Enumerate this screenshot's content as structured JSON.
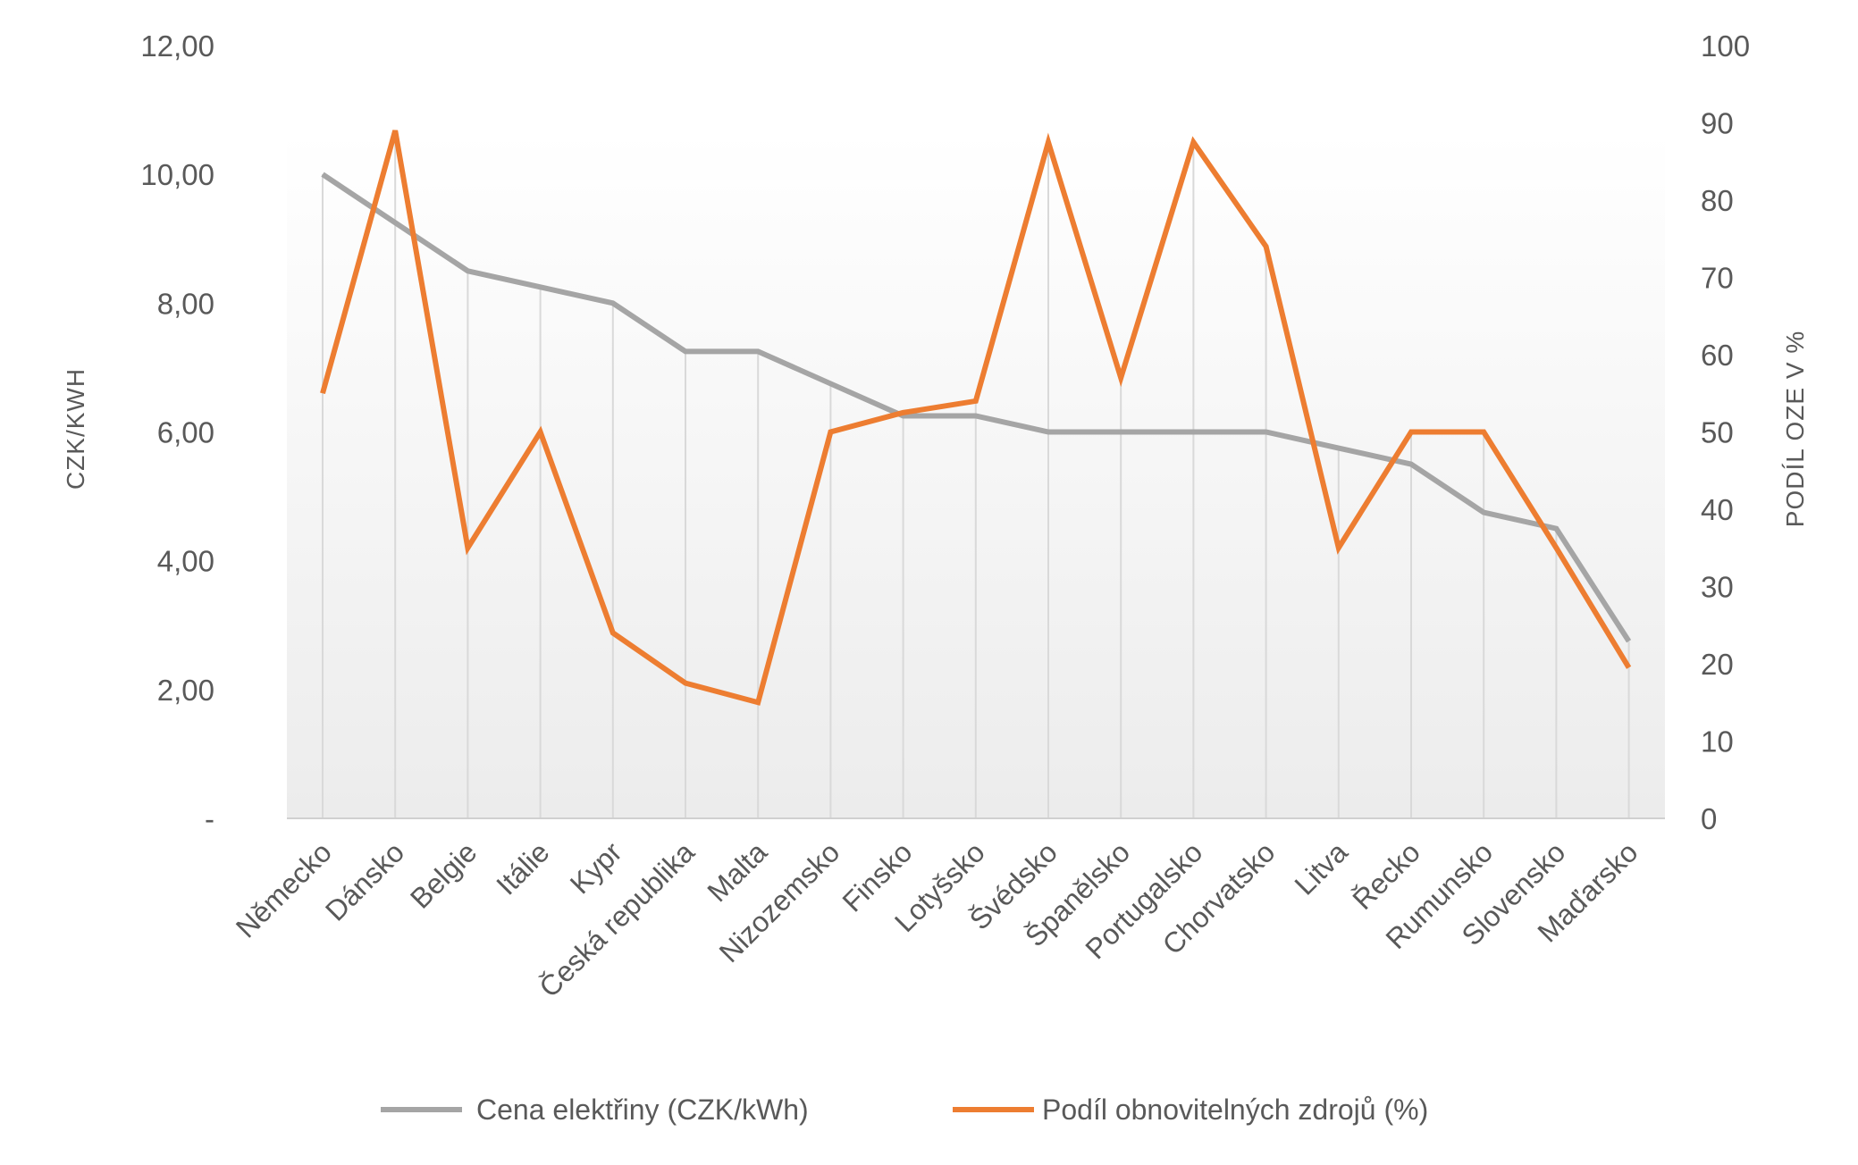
{
  "chart_data": {
    "type": "line",
    "title": "",
    "categories": [
      "Německo",
      "Dánsko",
      "Belgie",
      "Itálie",
      "Kypr",
      "Česká republika",
      "Malta",
      "Nizozemsko",
      "Finsko",
      "Lotyšsko",
      "Švédsko",
      "Španělsko",
      "Portugalsko",
      "Chorvatsko",
      "Litva",
      "Řecko",
      "Rumunsko",
      "Slovensko",
      "Maďarsko"
    ],
    "series": [
      {
        "name": "Cena elektřiny (CZK/kWh)",
        "axis": "left",
        "color": "#A5A5A5",
        "values": [
          10.0,
          9.25,
          8.5,
          8.25,
          8.0,
          7.25,
          7.25,
          6.75,
          6.25,
          6.25,
          6.0,
          6.0,
          6.0,
          6.0,
          5.75,
          5.5,
          4.75,
          4.5,
          2.75
        ]
      },
      {
        "name": "Podíl obnovitelných zdrojů (%)",
        "axis": "right",
        "color": "#ED7D31",
        "values": [
          55,
          89,
          35,
          50,
          24,
          17.5,
          15,
          50,
          52.5,
          54,
          87.5,
          57,
          87.5,
          74,
          35,
          50,
          50,
          35,
          19.5
        ]
      }
    ],
    "ylabel": "CZK/KWH",
    "ylabel_right": "PODÍL OZE  V %",
    "ylim": [
      0,
      12
    ],
    "ylim_right": [
      0,
      100
    ],
    "yticks": [
      {
        "value": 0,
        "label": "-"
      },
      {
        "value": 2,
        "label": "2,00"
      },
      {
        "value": 4,
        "label": "4,00"
      },
      {
        "value": 6,
        "label": "6,00"
      },
      {
        "value": 8,
        "label": "8,00"
      },
      {
        "value": 10,
        "label": "10,00"
      },
      {
        "value": 12,
        "label": "12,00"
      }
    ],
    "yticks_right": [
      {
        "value": 0,
        "label": "0"
      },
      {
        "value": 10,
        "label": "10"
      },
      {
        "value": 20,
        "label": "20"
      },
      {
        "value": 30,
        "label": "30"
      },
      {
        "value": 40,
        "label": "40"
      },
      {
        "value": 50,
        "label": "50"
      },
      {
        "value": 60,
        "label": "60"
      },
      {
        "value": 70,
        "label": "70"
      },
      {
        "value": 80,
        "label": "80"
      },
      {
        "value": 90,
        "label": "90"
      },
      {
        "value": 100,
        "label": "100"
      }
    ],
    "grid": "vertical drop lines",
    "legend": "bottom"
  }
}
